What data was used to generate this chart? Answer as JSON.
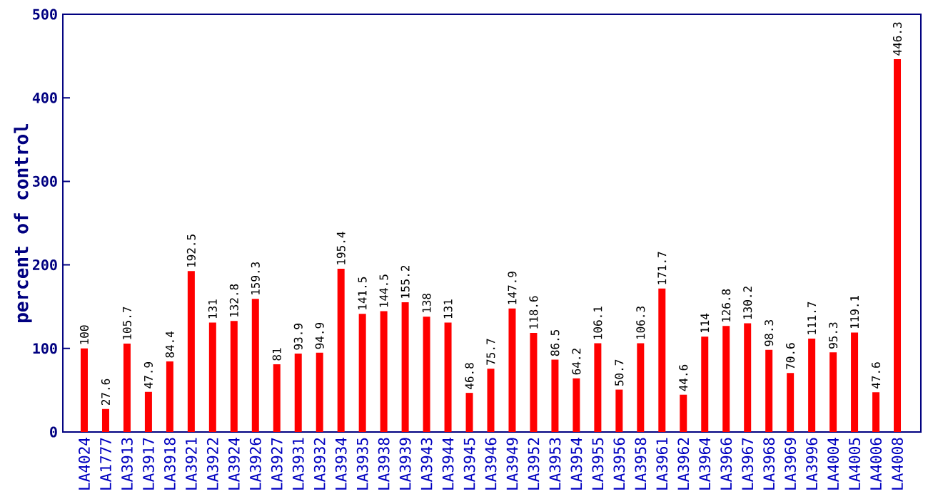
{
  "chart_data": {
    "type": "bar",
    "ylabel": "percent of control",
    "categories": [
      "LA4024",
      "LA1777",
      "LA3913",
      "LA3917",
      "LA3918",
      "LA3921",
      "LA3922",
      "LA3924",
      "LA3926",
      "LA3927",
      "LA3931",
      "LA3932",
      "LA3934",
      "LA3935",
      "LA3938",
      "LA3939",
      "LA3943",
      "LA3944",
      "LA3945",
      "LA3946",
      "LA3949",
      "LA3952",
      "LA3953",
      "LA3954",
      "LA3955",
      "LA3956",
      "LA3958",
      "LA3961",
      "LA3962",
      "LA3964",
      "LA3966",
      "LA3967",
      "LA3968",
      "LA3969",
      "LA3996",
      "LA4004",
      "LA4005",
      "LA4006",
      "LA4008"
    ],
    "values": [
      100,
      27.6,
      105.7,
      47.9,
      84.4,
      192.5,
      131,
      132.8,
      159.3,
      81,
      93.9,
      94.9,
      195.4,
      141.5,
      144.5,
      155.2,
      138,
      131,
      46.8,
      75.7,
      147.9,
      118.6,
      86.5,
      64.2,
      106.1,
      50.7,
      106.3,
      171.7,
      44.6,
      114,
      126.8,
      130.2,
      98.3,
      70.6,
      111.7,
      95.3,
      119.1,
      47.6,
      446.3
    ],
    "color": "#ff0000",
    "ylim": [
      0,
      500
    ],
    "yticks": [
      0,
      100,
      200,
      300,
      400,
      500
    ],
    "data_labels": true
  }
}
